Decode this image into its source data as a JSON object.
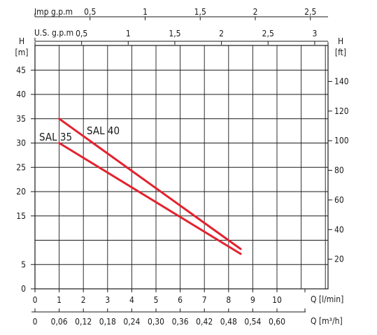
{
  "chart_data": {
    "type": "line",
    "x": [
      1,
      8.5
    ],
    "series": [
      {
        "name": "SAL 40",
        "values": [
          35,
          8.2
        ]
      },
      {
        "name": "SAL 35",
        "values": [
          30,
          7.2
        ]
      }
    ],
    "xlim": [
      0,
      12
    ],
    "ylim": [
      0,
      47
    ],
    "grid": true,
    "axes": {
      "left": {
        "title_line1": "H",
        "title_line2": "[m]",
        "ticks": [
          0,
          5,
          15,
          20,
          25,
          30,
          35,
          40,
          45
        ]
      },
      "right": {
        "title_line1": "H",
        "title_line2": "[ft]",
        "ticks": [
          20,
          40,
          60,
          80,
          100,
          120,
          140
        ]
      },
      "bottom1": {
        "title": "Q [l/min]",
        "ticks": [
          0,
          1,
          2,
          3,
          4,
          5,
          6,
          7,
          8,
          9,
          10
        ]
      },
      "bottom2": {
        "title": "Q [m³/h]",
        "ticks": [
          "0",
          "0,06",
          "0,12",
          "0,18",
          "0,24",
          "0,30",
          "0,36",
          "0,42",
          "0,48",
          "0,54",
          "0,60"
        ]
      },
      "top1": {
        "title": "Imp g.p.m",
        "ticks": [
          "0,5",
          "1",
          "1,5",
          "2",
          "2,5"
        ],
        "values": [
          0.5,
          1,
          1.5,
          2,
          2.5
        ]
      },
      "top2": {
        "title": "U.S. g.p.m",
        "ticks": [
          "0,5",
          "1",
          "1,5",
          "2",
          "2,5",
          "3"
        ],
        "values": [
          0.5,
          1,
          1.5,
          2,
          2.5,
          3
        ]
      }
    },
    "series_labels": [
      "SAL 35",
      "SAL 40"
    ],
    "colors": {
      "curve": "#e3222e",
      "grid": "#1a1a1a"
    }
  }
}
